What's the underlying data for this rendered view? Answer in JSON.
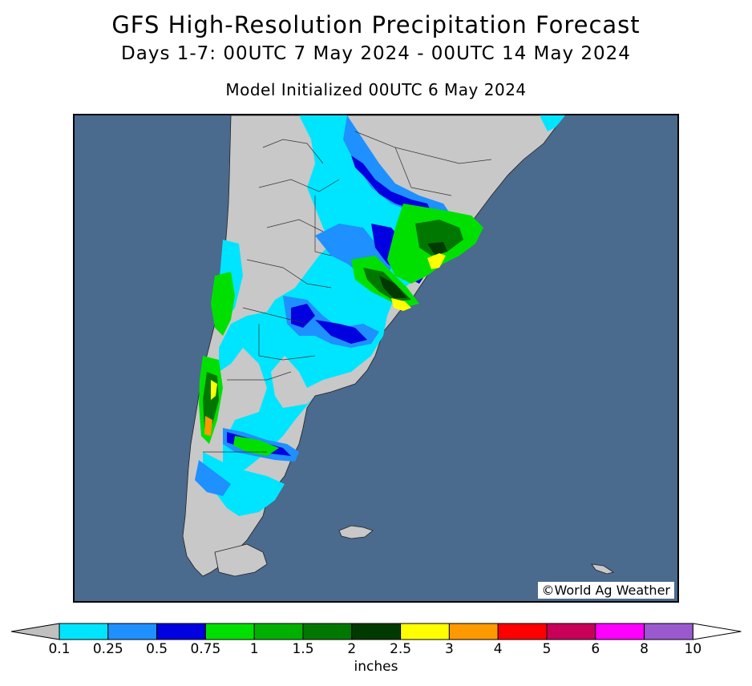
{
  "header": {
    "title": "GFS High-Resolution Precipitation Forecast",
    "subtitle": "Days 1-7: 00UTC 7 May 2024 - 00UTC 14 May 2024",
    "init": "Model Initialized 00UTC 6 May 2024"
  },
  "map": {
    "credit": "©World Ag Weather",
    "colors": {
      "ocean": "#4a6a8e",
      "land": "#c8c8c8",
      "border": "#000000"
    }
  },
  "legend": {
    "units": "inches",
    "ticks": [
      "0.1",
      "0.25",
      "0.5",
      "0.75",
      "1",
      "1.5",
      "2",
      "2.5",
      "3",
      "4",
      "5",
      "6",
      "8",
      "10"
    ],
    "colors": [
      "#c0c0c0",
      "#00e5ff",
      "#1e90ff",
      "#0000e0",
      "#00e000",
      "#00b000",
      "#007800",
      "#003a00",
      "#ffff00",
      "#ff9900",
      "#ff0000",
      "#c8005a",
      "#ff00ff",
      "#9b59d0",
      "#ffffff"
    ]
  }
}
